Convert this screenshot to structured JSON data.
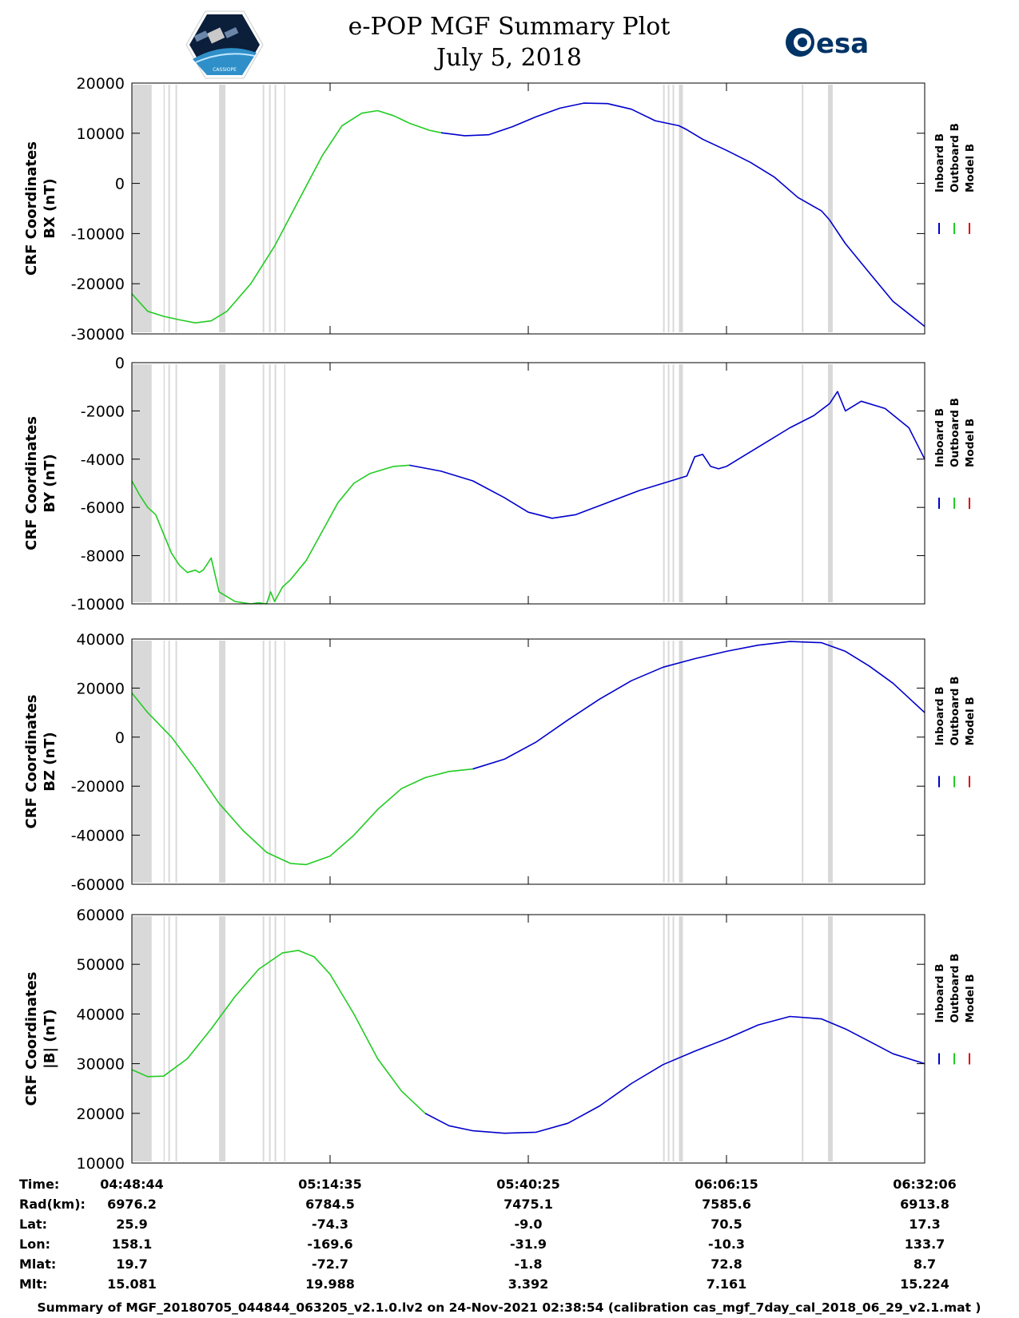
{
  "title": {
    "line1": "e-POP MGF Summary Plot",
    "line2": "July 5, 2018"
  },
  "logos": {
    "left": "cassiope-mission-patch",
    "left_text": "CASSIOPE",
    "right_text": "esa"
  },
  "colors": {
    "inboard": "#0000cc",
    "outboard": "#22cc22",
    "model": "#dd0000",
    "gap_band": "#d9d9d9"
  },
  "legend": [
    "Inboard B",
    "Outboard B",
    "Model B"
  ],
  "chart_data": [
    {
      "type": "line",
      "ylabel_line1": "CRF Coordinates",
      "ylabel_line2": "BX (nT)",
      "ylim": [
        -30000,
        20000
      ],
      "yticks": [
        20000,
        10000,
        0,
        -10000,
        -20000,
        -30000
      ],
      "series": [
        {
          "name": "Outboard B",
          "x": [
            0,
            0.02,
            0.04,
            0.06,
            0.08,
            0.1,
            0.12,
            0.15,
            0.18,
            0.21,
            0.24,
            0.265,
            0.29,
            0.31,
            0.33,
            0.35,
            0.375,
            0.39
          ],
          "values": [
            -22000,
            -25500,
            -26500,
            -27200,
            -27800,
            -27400,
            -25500,
            -20000,
            -12500,
            -3500,
            5500,
            11500,
            14000,
            14500,
            13500,
            12000,
            10600,
            10100
          ]
        },
        {
          "name": "Inboard B",
          "x": [
            0.39,
            0.42,
            0.45,
            0.48,
            0.51,
            0.54,
            0.57,
            0.6,
            0.63,
            0.66,
            0.69,
            0.7,
            0.72,
            0.75,
            0.78,
            0.81,
            0.84,
            0.87,
            0.88,
            0.9,
            0.93,
            0.96,
            1.0
          ],
          "values": [
            10100,
            9500,
            9700,
            11300,
            13300,
            15000,
            16000,
            15900,
            14800,
            12500,
            11500,
            10700,
            8800,
            6600,
            4200,
            1300,
            -2800,
            -5500,
            -7300,
            -12000,
            -17800,
            -23500,
            -28500
          ]
        }
      ]
    },
    {
      "type": "line",
      "ylabel_line1": "CRF Coordinates",
      "ylabel_line2": "BY (nT)",
      "ylim": [
        -10000,
        0
      ],
      "yticks": [
        0,
        -2000,
        -4000,
        -6000,
        -8000,
        -10000
      ],
      "series": [
        {
          "name": "Outboard B",
          "x": [
            0,
            0.01,
            0.02,
            0.03,
            0.04,
            0.05,
            0.06,
            0.07,
            0.08,
            0.085,
            0.09,
            0.1,
            0.11,
            0.12,
            0.13,
            0.14,
            0.15,
            0.16,
            0.17,
            0.175,
            0.18,
            0.19,
            0.2,
            0.22,
            0.24,
            0.26,
            0.28,
            0.3,
            0.33,
            0.35
          ],
          "values": [
            -4900,
            -5500,
            -6000,
            -6300,
            -7100,
            -7900,
            -8400,
            -8700,
            -8600,
            -8700,
            -8600,
            -8100,
            -9500,
            -9700,
            -9900,
            -9950,
            -10000,
            -9950,
            -10000,
            -9500,
            -9900,
            -9300,
            -9000,
            -8200,
            -7000,
            -5800,
            -5000,
            -4600,
            -4300,
            -4250
          ]
        },
        {
          "name": "Inboard B",
          "x": [
            0.35,
            0.39,
            0.43,
            0.47,
            0.5,
            0.53,
            0.56,
            0.6,
            0.64,
            0.68,
            0.7,
            0.71,
            0.72,
            0.73,
            0.74,
            0.75,
            0.77,
            0.8,
            0.83,
            0.86,
            0.88,
            0.89,
            0.9,
            0.92,
            0.95,
            0.98,
            1.0
          ],
          "values": [
            -4250,
            -4500,
            -4900,
            -5600,
            -6200,
            -6450,
            -6300,
            -5800,
            -5300,
            -4900,
            -4700,
            -3900,
            -3800,
            -4300,
            -4400,
            -4300,
            -3900,
            -3300,
            -2700,
            -2200,
            -1700,
            -1200,
            -2000,
            -1600,
            -1900,
            -2700,
            -4000
          ]
        }
      ]
    },
    {
      "type": "line",
      "ylabel_line1": "CRF Coordinates",
      "ylabel_line2": "BZ (nT)",
      "ylim": [
        -60000,
        40000
      ],
      "yticks": [
        40000,
        20000,
        0,
        -20000,
        -40000,
        -60000
      ],
      "series": [
        {
          "name": "Outboard B",
          "x": [
            0,
            0.02,
            0.05,
            0.08,
            0.11,
            0.14,
            0.17,
            0.2,
            0.22,
            0.25,
            0.28,
            0.31,
            0.34,
            0.37,
            0.4,
            0.43
          ],
          "values": [
            18000,
            10000,
            0,
            -13000,
            -27000,
            -38000,
            -47000,
            -51500,
            -52000,
            -48500,
            -40000,
            -29500,
            -21000,
            -16500,
            -14000,
            -13000
          ]
        },
        {
          "name": "Inboard B",
          "x": [
            0.43,
            0.47,
            0.51,
            0.55,
            0.59,
            0.63,
            0.67,
            0.71,
            0.75,
            0.79,
            0.83,
            0.87,
            0.9,
            0.93,
            0.96,
            1.0
          ],
          "values": [
            -13000,
            -9000,
            -2000,
            7000,
            15500,
            23000,
            28500,
            32000,
            35000,
            37500,
            39000,
            38500,
            35000,
            29000,
            22000,
            10000
          ]
        }
      ]
    },
    {
      "type": "line",
      "ylabel_line1": "CRF Coordinates",
      "ylabel_line2": "|B| (nT)",
      "ylim": [
        10000,
        60000
      ],
      "yticks": [
        60000,
        50000,
        40000,
        30000,
        20000,
        10000
      ],
      "series": [
        {
          "name": "Outboard B",
          "x": [
            0,
            0.02,
            0.04,
            0.07,
            0.1,
            0.13,
            0.16,
            0.19,
            0.21,
            0.23,
            0.25,
            0.28,
            0.31,
            0.34,
            0.37
          ],
          "values": [
            28800,
            27400,
            27500,
            31000,
            37000,
            43500,
            49000,
            52300,
            52800,
            51500,
            48000,
            40000,
            31000,
            24500,
            20000
          ]
        },
        {
          "name": "Inboard B",
          "x": [
            0.37,
            0.4,
            0.43,
            0.47,
            0.51,
            0.55,
            0.59,
            0.63,
            0.67,
            0.71,
            0.75,
            0.79,
            0.83,
            0.87,
            0.9,
            0.93,
            0.96,
            1.0
          ],
          "values": [
            20000,
            17500,
            16500,
            16000,
            16200,
            18000,
            21500,
            26000,
            29800,
            32500,
            35000,
            37800,
            39500,
            39000,
            37000,
            34500,
            32000,
            30000
          ]
        }
      ]
    }
  ],
  "gap_bands": [
    [
      0,
      0.025
    ],
    [
      0.04,
      0.041
    ],
    [
      0.046,
      0.048
    ],
    [
      0.055,
      0.057
    ],
    [
      0.11,
      0.118
    ],
    [
      0.165,
      0.167
    ],
    [
      0.173,
      0.175
    ],
    [
      0.18,
      0.182
    ],
    [
      0.192,
      0.193
    ],
    [
      0.67,
      0.672
    ],
    [
      0.676,
      0.678
    ],
    [
      0.682,
      0.684
    ],
    [
      0.69,
      0.695
    ],
    [
      0.845,
      0.847
    ],
    [
      0.878,
      0.884
    ]
  ],
  "table": {
    "row_labels": [
      "Time:",
      "Rad(km):",
      "Lat:",
      "Lon:",
      "Mlat:",
      "Mlt:"
    ],
    "columns": [
      [
        "04:48:44",
        "6976.2",
        "25.9",
        "158.1",
        "19.7",
        "15.081"
      ],
      [
        "05:14:35",
        "6784.5",
        "-74.3",
        "-169.6",
        "-72.7",
        "19.988"
      ],
      [
        "05:40:25",
        "7475.1",
        "-9.0",
        "-31.9",
        "-1.8",
        "3.392"
      ],
      [
        "06:06:15",
        "7585.6",
        "70.5",
        "-10.3",
        "72.8",
        "7.161"
      ],
      [
        "06:32:06",
        "6913.8",
        "17.3",
        "133.7",
        "8.7",
        "15.224"
      ]
    ]
  },
  "footer": "Summary of MGF_20180705_044844_063205_v2.1.0.lv2 on 24-Nov-2021 02:38:54 (calibration cas_mgf_7day_cal_2018_06_29_v2.1.mat )"
}
